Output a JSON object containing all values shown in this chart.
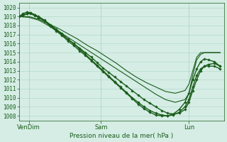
{
  "xlabel": "Pression niveau de la mer( hPa )",
  "bg_color": "#d5ede5",
  "grid_color": "#aed4c4",
  "line_color": "#1a5c1a",
  "ylim": [
    1007.5,
    1020.5
  ],
  "yticks": [
    1008,
    1009,
    1010,
    1011,
    1012,
    1013,
    1014,
    1015,
    1016,
    1017,
    1018,
    1019,
    1020
  ],
  "xtick_labels": [
    "VenDim",
    "Sam",
    "Lun"
  ],
  "xtick_pos": [
    0.05,
    0.42,
    0.87
  ],
  "xlim": [
    0.0,
    1.05
  ],
  "lines": [
    {
      "x": [
        0.0,
        0.02,
        0.04,
        0.06,
        0.08,
        0.1,
        0.13,
        0.16,
        0.19,
        0.22,
        0.25,
        0.28,
        0.31,
        0.34,
        0.37,
        0.4,
        0.43,
        0.46,
        0.49,
        0.52,
        0.55,
        0.58,
        0.61,
        0.64,
        0.67,
        0.7,
        0.73,
        0.76,
        0.79,
        0.82,
        0.85,
        0.87,
        0.89,
        0.91,
        0.93,
        0.95,
        0.97,
        1.0,
        1.03
      ],
      "y": [
        1019.0,
        1019.2,
        1019.3,
        1019.3,
        1019.1,
        1018.9,
        1018.5,
        1018.0,
        1017.5,
        1017.0,
        1016.5,
        1016.0,
        1015.5,
        1015.0,
        1014.5,
        1013.9,
        1013.3,
        1012.8,
        1012.3,
        1011.8,
        1011.3,
        1010.8,
        1010.3,
        1009.8,
        1009.4,
        1009.0,
        1008.6,
        1008.3,
        1008.2,
        1008.3,
        1008.7,
        1009.5,
        1010.8,
        1012.0,
        1013.0,
        1013.5,
        1013.7,
        1013.8,
        1013.5
      ],
      "marker": "D",
      "markersize": 1.8,
      "linewidth": 1.0
    },
    {
      "x": [
        0.0,
        0.02,
        0.04,
        0.06,
        0.08,
        0.1,
        0.13,
        0.16,
        0.19,
        0.22,
        0.25,
        0.28,
        0.31,
        0.34,
        0.37,
        0.4,
        0.43,
        0.46,
        0.49,
        0.52,
        0.55,
        0.58,
        0.61,
        0.64,
        0.67,
        0.7,
        0.73,
        0.76,
        0.79,
        0.82,
        0.85,
        0.87,
        0.89,
        0.91,
        0.93,
        0.95,
        0.97,
        1.0,
        1.03
      ],
      "y": [
        1019.0,
        1019.3,
        1019.5,
        1019.4,
        1019.2,
        1018.9,
        1018.5,
        1017.9,
        1017.4,
        1016.9,
        1016.3,
        1015.8,
        1015.2,
        1014.7,
        1014.1,
        1013.5,
        1012.9,
        1012.3,
        1011.7,
        1011.1,
        1010.5,
        1009.9,
        1009.3,
        1008.8,
        1008.4,
        1008.1,
        1008.0,
        1008.0,
        1008.2,
        1008.7,
        1009.5,
        1010.5,
        1012.0,
        1013.2,
        1014.0,
        1014.3,
        1014.2,
        1014.0,
        1013.5
      ],
      "marker": "D",
      "markersize": 1.8,
      "linewidth": 1.0
    },
    {
      "x": [
        0.0,
        0.05,
        0.1,
        0.15,
        0.2,
        0.25,
        0.3,
        0.35,
        0.4,
        0.45,
        0.5,
        0.55,
        0.6,
        0.65,
        0.7,
        0.75,
        0.8,
        0.85,
        0.87,
        0.89,
        0.91,
        0.93,
        0.95,
        0.98,
        1.0,
        1.03
      ],
      "y": [
        1019.0,
        1019.0,
        1018.7,
        1018.2,
        1017.7,
        1017.1,
        1016.5,
        1015.8,
        1015.2,
        1014.5,
        1013.8,
        1013.0,
        1012.3,
        1011.7,
        1011.2,
        1010.7,
        1010.5,
        1010.8,
        1011.5,
        1013.0,
        1014.5,
        1015.0,
        1015.0,
        1015.0,
        1015.0,
        1015.0
      ],
      "marker": null,
      "linewidth": 0.8
    },
    {
      "x": [
        0.0,
        0.05,
        0.1,
        0.15,
        0.2,
        0.25,
        0.3,
        0.35,
        0.4,
        0.45,
        0.5,
        0.55,
        0.6,
        0.65,
        0.7,
        0.75,
        0.8,
        0.85,
        0.87,
        0.89,
        0.91,
        0.93,
        0.95,
        0.98,
        1.0,
        1.03
      ],
      "y": [
        1019.0,
        1018.9,
        1018.6,
        1018.0,
        1017.4,
        1016.7,
        1016.0,
        1015.3,
        1014.6,
        1013.9,
        1013.2,
        1012.5,
        1011.8,
        1011.1,
        1010.4,
        1009.8,
        1009.5,
        1009.8,
        1010.5,
        1012.5,
        1014.2,
        1014.8,
        1015.0,
        1015.0,
        1015.0,
        1015.0
      ],
      "marker": null,
      "linewidth": 0.8
    },
    {
      "x": [
        0.0,
        0.02,
        0.04,
        0.06,
        0.08,
        0.1,
        0.13,
        0.16,
        0.19,
        0.22,
        0.25,
        0.28,
        0.31,
        0.34,
        0.37,
        0.4,
        0.43,
        0.46,
        0.49,
        0.52,
        0.55,
        0.58,
        0.61,
        0.64,
        0.67,
        0.7,
        0.73,
        0.76,
        0.79,
        0.82,
        0.85,
        0.87,
        0.89,
        0.91,
        0.93,
        0.95,
        0.97,
        1.0,
        1.03
      ],
      "y": [
        1019.0,
        1019.1,
        1019.3,
        1019.4,
        1019.2,
        1019.0,
        1018.6,
        1018.1,
        1017.6,
        1017.1,
        1016.5,
        1016.0,
        1015.4,
        1014.8,
        1014.2,
        1013.6,
        1013.0,
        1012.4,
        1011.8,
        1011.2,
        1010.6,
        1010.0,
        1009.5,
        1009.0,
        1008.6,
        1008.3,
        1008.1,
        1008.0,
        1008.1,
        1008.4,
        1009.0,
        1009.8,
        1011.2,
        1012.5,
        1013.2,
        1013.5,
        1013.5,
        1013.5,
        1013.2
      ],
      "marker": "D",
      "markersize": 1.8,
      "linewidth": 1.0
    }
  ]
}
